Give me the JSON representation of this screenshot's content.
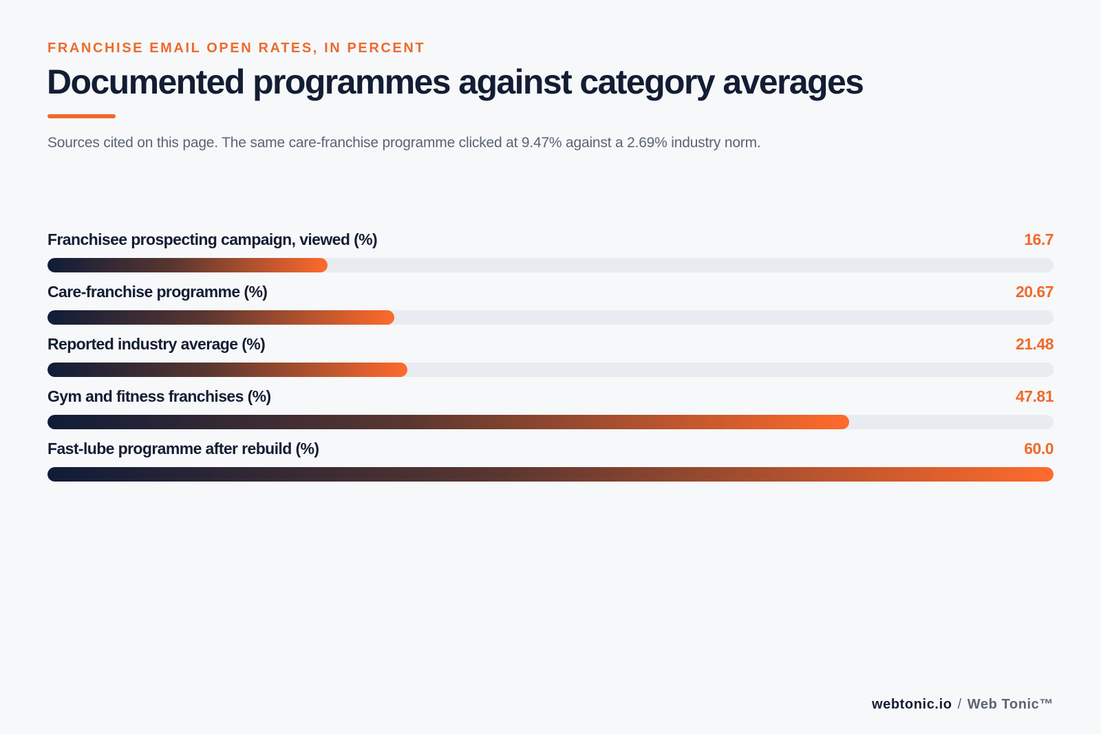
{
  "header": {
    "kicker": "FRANCHISE EMAIL OPEN RATES, IN PERCENT",
    "title": "Documented programmes against category averages",
    "subtitle": "Sources cited on this page. The same care-franchise programme clicked at 9.47% against a 2.69% industry norm."
  },
  "footer": {
    "site": "webtonic.io",
    "separator": "/",
    "brand": "Web Tonic™"
  },
  "colors": {
    "accent": "#ee6a2c",
    "navy": "#131d33",
    "track": "#e8ebef",
    "background": "#f6f8fa"
  },
  "chart_data": {
    "type": "bar",
    "orientation": "horizontal",
    "title": "Documented programmes against category averages",
    "xlim": [
      0,
      60
    ],
    "grid": false,
    "categories": [
      "Franchisee prospecting campaign, viewed (%)",
      "Care-franchise programme (%)",
      "Reported industry average (%)",
      "Gym and fitness franchises (%)",
      "Fast-lube programme after rebuild (%)"
    ],
    "values": [
      16.7,
      20.67,
      21.48,
      47.81,
      60.0
    ],
    "value_labels": [
      "16.7",
      "20.67",
      "21.48",
      "47.81",
      "60.0"
    ]
  }
}
